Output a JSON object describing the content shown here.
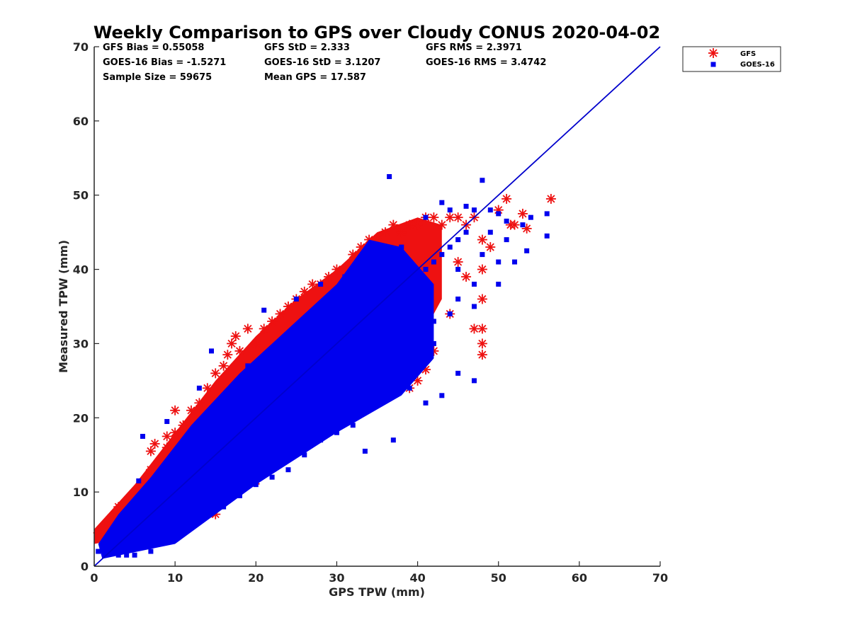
{
  "chart_data": {
    "type": "scatter",
    "title": "Weekly Comparison to GPS over Cloudy CONUS 2020-04-02",
    "xlabel": "GPS TPW (mm)",
    "ylabel": "Measured TPW (mm)",
    "xlim": [
      0,
      70
    ],
    "ylim": [
      0,
      70
    ],
    "xticks": [
      "0",
      "10",
      "20",
      "30",
      "40",
      "50",
      "60",
      "70"
    ],
    "yticks": [
      "0",
      "10",
      "20",
      "30",
      "40",
      "50",
      "60",
      "70"
    ],
    "grid": false,
    "legend_position": "outside-top-right",
    "one_to_one_line": {
      "x": [
        0,
        70
      ],
      "y": [
        0,
        70
      ],
      "color": "#0000cc"
    },
    "stats": [
      "GFS Bias = 0.55058",
      "GFS StD = 2.333",
      "GFS RMS = 2.3971",
      "GOES-16 Bias = -1.5271",
      "GOES-16 StD = 3.1207",
      "GOES-16 RMS = 3.4742",
      "Sample Size = 59675",
      "Mean GPS = 17.587"
    ],
    "series": [
      {
        "name": "GFS",
        "marker": "asterisk",
        "color": "#ee1111",
        "points": [
          [
            0.5,
            4.5
          ],
          [
            1,
            5
          ],
          [
            1.5,
            5.5
          ],
          [
            2,
            6
          ],
          [
            2.5,
            7
          ],
          [
            3,
            8
          ],
          [
            3.5,
            7
          ],
          [
            4,
            7.5
          ],
          [
            5,
            8
          ],
          [
            5.5,
            10
          ],
          [
            6,
            11
          ],
          [
            6.5,
            12
          ],
          [
            7,
            13
          ],
          [
            7,
            15.5
          ],
          [
            7.5,
            16.5
          ],
          [
            8,
            14
          ],
          [
            9,
            16
          ],
          [
            9,
            17.5
          ],
          [
            10,
            18
          ],
          [
            10,
            21
          ],
          [
            11,
            19
          ],
          [
            12,
            21
          ],
          [
            13,
            22
          ],
          [
            14,
            24
          ],
          [
            15,
            26
          ],
          [
            15,
            7
          ],
          [
            16,
            27
          ],
          [
            16.5,
            28.5
          ],
          [
            17,
            30
          ],
          [
            17.5,
            31
          ],
          [
            18,
            29
          ],
          [
            19,
            32
          ],
          [
            20,
            30
          ],
          [
            21,
            32
          ],
          [
            22,
            33
          ],
          [
            23,
            34
          ],
          [
            24,
            35
          ],
          [
            25,
            36
          ],
          [
            26,
            37
          ],
          [
            27,
            38
          ],
          [
            28,
            38
          ],
          [
            29,
            39
          ],
          [
            30,
            40
          ],
          [
            31,
            40
          ],
          [
            32,
            42
          ],
          [
            33,
            43
          ],
          [
            34,
            44
          ],
          [
            35,
            44
          ],
          [
            36,
            45
          ],
          [
            37,
            46
          ],
          [
            38,
            45
          ],
          [
            39,
            46
          ],
          [
            40,
            46
          ],
          [
            41,
            47
          ],
          [
            42,
            47
          ],
          [
            43,
            46
          ],
          [
            44,
            47
          ],
          [
            45,
            47
          ],
          [
            46,
            46
          ],
          [
            47,
            47
          ],
          [
            48,
            44
          ],
          [
            48,
            40
          ],
          [
            48,
            36
          ],
          [
            48,
            32
          ],
          [
            48,
            30
          ],
          [
            48,
            28.5
          ],
          [
            49,
            43
          ],
          [
            50,
            48
          ],
          [
            51,
            49.5
          ],
          [
            51.5,
            46
          ],
          [
            52,
            46
          ],
          [
            53,
            47.5
          ],
          [
            53.5,
            45.5
          ],
          [
            56.5,
            49.5
          ],
          [
            42,
            29
          ],
          [
            41,
            26.5
          ],
          [
            40,
            25
          ],
          [
            39,
            24
          ],
          [
            38,
            27
          ],
          [
            36,
            25
          ],
          [
            30,
            21
          ],
          [
            28,
            20
          ],
          [
            27,
            19
          ],
          [
            25,
            17
          ],
          [
            24,
            16
          ],
          [
            22,
            15
          ],
          [
            21,
            14
          ],
          [
            20,
            13
          ],
          [
            19,
            12
          ],
          [
            18,
            11
          ],
          [
            17,
            11
          ],
          [
            16,
            10
          ],
          [
            15,
            9
          ],
          [
            14,
            8
          ],
          [
            12,
            6
          ],
          [
            10,
            5
          ],
          [
            9,
            4
          ],
          [
            8,
            3.5
          ],
          [
            20,
            11.5
          ],
          [
            44,
            34
          ],
          [
            45,
            41
          ],
          [
            46,
            39
          ],
          [
            47,
            32
          ],
          [
            26,
            30
          ],
          [
            31,
            35
          ],
          [
            33,
            38
          ],
          [
            35,
            42
          ],
          [
            29,
            34
          ],
          [
            23,
            29
          ],
          [
            18,
            24
          ]
        ]
      },
      {
        "name": "GOES-16",
        "marker": "square",
        "color": "#0000ee",
        "points": [
          [
            0.5,
            2
          ],
          [
            1,
            2.5
          ],
          [
            1.5,
            3
          ],
          [
            2,
            3
          ],
          [
            2.5,
            4
          ],
          [
            3,
            4
          ],
          [
            3.5,
            3.5
          ],
          [
            4,
            5
          ],
          [
            5,
            6
          ],
          [
            6,
            7
          ],
          [
            7,
            8
          ],
          [
            8,
            8
          ],
          [
            9,
            9
          ],
          [
            10,
            10
          ],
          [
            11,
            11
          ],
          [
            12,
            12
          ],
          [
            13,
            12
          ],
          [
            14,
            13
          ],
          [
            15,
            14
          ],
          [
            16,
            15
          ],
          [
            17,
            16
          ],
          [
            18,
            17
          ],
          [
            19,
            18
          ],
          [
            20,
            19
          ],
          [
            21,
            20
          ],
          [
            22,
            21
          ],
          [
            23,
            22
          ],
          [
            24,
            23
          ],
          [
            25,
            24
          ],
          [
            26,
            25
          ],
          [
            27,
            26
          ],
          [
            28,
            27
          ],
          [
            29,
            28
          ],
          [
            30,
            29
          ],
          [
            31,
            30
          ],
          [
            32,
            31
          ],
          [
            33,
            32
          ],
          [
            34,
            33
          ],
          [
            35,
            34
          ],
          [
            36,
            35
          ],
          [
            37,
            36
          ],
          [
            38,
            37
          ],
          [
            39,
            38
          ],
          [
            40,
            39
          ],
          [
            41,
            40
          ],
          [
            42,
            41
          ],
          [
            43,
            42
          ],
          [
            44,
            43
          ],
          [
            45,
            44
          ],
          [
            46,
            45
          ],
          [
            36.5,
            52.5
          ],
          [
            48,
            52
          ],
          [
            43,
            49
          ],
          [
            44,
            48
          ],
          [
            46,
            48.5
          ],
          [
            47,
            48
          ],
          [
            49,
            48
          ],
          [
            50,
            47.5
          ],
          [
            51,
            46.5
          ],
          [
            53,
            46
          ],
          [
            54,
            47
          ],
          [
            56,
            47.5
          ],
          [
            56,
            44.5
          ],
          [
            53.5,
            42.5
          ],
          [
            50,
            41
          ],
          [
            47,
            38
          ],
          [
            45,
            36
          ],
          [
            44,
            34
          ],
          [
            42,
            33
          ],
          [
            40,
            30
          ],
          [
            38,
            27
          ],
          [
            36,
            25
          ],
          [
            35,
            23
          ],
          [
            37,
            17
          ],
          [
            33.5,
            15.5
          ],
          [
            32,
            19
          ],
          [
            30,
            18
          ],
          [
            28,
            17
          ],
          [
            26,
            15
          ],
          [
            24,
            13
          ],
          [
            22,
            12
          ],
          [
            20,
            11
          ],
          [
            18,
            9.5
          ],
          [
            16,
            8
          ],
          [
            14,
            7
          ],
          [
            12,
            5.5
          ],
          [
            10,
            4
          ],
          [
            8,
            3
          ],
          [
            7,
            2
          ],
          [
            5,
            1.5
          ],
          [
            4,
            1.5
          ],
          [
            3,
            1.5
          ],
          [
            14.5,
            29
          ],
          [
            13,
            24
          ],
          [
            9,
            19.5
          ],
          [
            6,
            17.5
          ],
          [
            5.5,
            11.5
          ],
          [
            19,
            27
          ],
          [
            21,
            34.5
          ],
          [
            25,
            36
          ],
          [
            28,
            38
          ],
          [
            31,
            39
          ],
          [
            34,
            43
          ],
          [
            38,
            43
          ],
          [
            41,
            47
          ],
          [
            40,
            35
          ],
          [
            39,
            31
          ],
          [
            42,
            30
          ],
          [
            45,
            40
          ],
          [
            48,
            42
          ],
          [
            49,
            45
          ],
          [
            51,
            44
          ],
          [
            52,
            41
          ],
          [
            50,
            38
          ],
          [
            47,
            35
          ],
          [
            47,
            25
          ],
          [
            45,
            26
          ],
          [
            43,
            23
          ],
          [
            41,
            22
          ],
          [
            39,
            24
          ]
        ]
      }
    ]
  }
}
